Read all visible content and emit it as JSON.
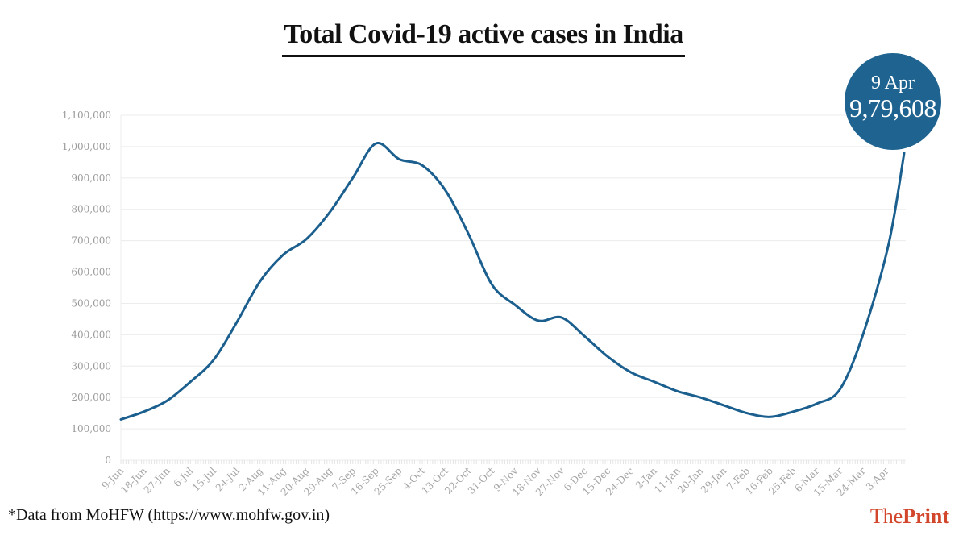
{
  "chart_data": {
    "type": "line",
    "title": "Total Covid-19 active cases in India",
    "xlabel": "",
    "ylabel": "",
    "ylim": [
      0,
      1100000
    ],
    "grid": true,
    "y_ticks": [
      0,
      100000,
      200000,
      300000,
      400000,
      500000,
      600000,
      700000,
      800000,
      900000,
      1000000,
      1100000
    ],
    "y_tick_labels": [
      "0",
      "100,000",
      "200,000",
      "300,000",
      "400,000",
      "500,000",
      "600,000",
      "700,000",
      "800,000",
      "900,000",
      "1,000,000",
      "1,100,000"
    ],
    "x_tick_labels": [
      "9-Jun",
      "18-Jun",
      "27-Jun",
      "6-Jul",
      "15-Jul",
      "24-Jul",
      "2-Aug",
      "11-Aug",
      "20-Aug",
      "29-Aug",
      "7-Sep",
      "16-Sep",
      "25-Sep",
      "4-Oct",
      "13-Oct",
      "22-Oct",
      "31-Oct",
      "9-Nov",
      "18-Nov",
      "27-Nov",
      "6-Dec",
      "15-Dec",
      "24-Dec",
      "2-Jan",
      "11-Jan",
      "20-Jan",
      "29-Jan",
      "7-Feb",
      "16-Feb",
      "25-Feb",
      "6-Mar",
      "15-Mar",
      "24-Mar",
      "3-Apr"
    ],
    "series": [
      {
        "name": "Active cases",
        "color": "#1b5f8f",
        "x": [
          "9-Jun",
          "18-Jun",
          "27-Jun",
          "6-Jul",
          "15-Jul",
          "24-Jul",
          "2-Aug",
          "11-Aug",
          "20-Aug",
          "29-Aug",
          "7-Sep",
          "16-Sep",
          "25-Sep",
          "4-Oct",
          "13-Oct",
          "22-Oct",
          "31-Oct",
          "9-Nov",
          "18-Nov",
          "27-Nov",
          "6-Dec",
          "15-Dec",
          "24-Dec",
          "2-Jan",
          "11-Jan",
          "20-Jan",
          "29-Jan",
          "7-Feb",
          "16-Feb",
          "25-Feb",
          "6-Mar",
          "15-Mar",
          "24-Mar",
          "3-Apr",
          "9-Apr"
        ],
        "day_index": [
          0,
          9,
          18,
          27,
          36,
          45,
          54,
          63,
          72,
          81,
          90,
          99,
          108,
          117,
          126,
          135,
          144,
          153,
          162,
          171,
          180,
          189,
          198,
          207,
          216,
          225,
          234,
          243,
          252,
          261,
          270,
          279,
          288,
          298,
          304
        ],
        "values": [
          130000,
          155000,
          190000,
          250000,
          320000,
          440000,
          570000,
          655000,
          705000,
          790000,
          900000,
          1010000,
          960000,
          940000,
          860000,
          720000,
          560000,
          495000,
          445000,
          455000,
          395000,
          330000,
          280000,
          250000,
          220000,
          200000,
          175000,
          150000,
          138000,
          155000,
          180000,
          225000,
          400000,
          690000,
          979608
        ]
      }
    ],
    "annotation": {
      "date": "9 Apr",
      "value": "9,79,608",
      "color": "#1f6490"
    }
  },
  "footer": {
    "source_note": "*Data from MoHFW (https://www.mohfw.gov.in)",
    "brand_regular": "The",
    "brand_bold": "Print",
    "brand_color": "#d2462b"
  }
}
